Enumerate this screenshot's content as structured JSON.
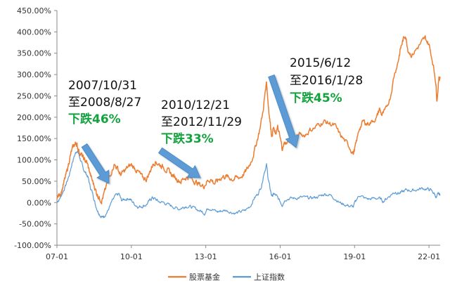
{
  "chart_data": {
    "type": "line",
    "title": "",
    "xlabel": "",
    "ylabel": "",
    "ylim": [
      -100,
      450
    ],
    "yticks": [
      "450.00%",
      "400.00%",
      "350.00%",
      "300.00%",
      "250.00%",
      "200.00%",
      "150.00%",
      "100.00%",
      "50.00%",
      "0.00%",
      "-50.00%",
      "-100.00%"
    ],
    "ytick_values": [
      450,
      400,
      350,
      300,
      250,
      200,
      150,
      100,
      50,
      0,
      -50,
      -100
    ],
    "xticks": [
      "07-01",
      "10-01",
      "13-01",
      "16-01",
      "19-01",
      "22-01"
    ],
    "xtick_values": [
      2007.0,
      2010.0,
      2013.0,
      2016.0,
      2019.0,
      2022.0
    ],
    "xlim": [
      2007.0,
      2022.45
    ],
    "grid": false,
    "legend_position": "bottom-center",
    "colors": {
      "fund": "#ed7d31",
      "index": "#5b9bd5",
      "arrow": "#5b9bd5",
      "green": "#12a33c"
    },
    "series": [
      {
        "name": "股票基金",
        "points": [
          [
            2007.0,
            12
          ],
          [
            2007.1,
            18
          ],
          [
            2007.2,
            30
          ],
          [
            2007.3,
            50
          ],
          [
            2007.4,
            72
          ],
          [
            2007.5,
            100
          ],
          [
            2007.6,
            122
          ],
          [
            2007.7,
            135
          ],
          [
            2007.78,
            140
          ],
          [
            2007.83,
            130
          ],
          [
            2007.9,
            120
          ],
          [
            2008.0,
            110
          ],
          [
            2008.1,
            100
          ],
          [
            2008.2,
            95
          ],
          [
            2008.3,
            75
          ],
          [
            2008.4,
            55
          ],
          [
            2008.5,
            40
          ],
          [
            2008.6,
            22
          ],
          [
            2008.7,
            12
          ],
          [
            2008.8,
            5
          ],
          [
            2008.9,
            20
          ],
          [
            2009.0,
            40
          ],
          [
            2009.15,
            65
          ],
          [
            2009.3,
            90
          ],
          [
            2009.45,
            80
          ],
          [
            2009.55,
            65
          ],
          [
            2009.7,
            72
          ],
          [
            2009.85,
            82
          ],
          [
            2010.0,
            88
          ],
          [
            2010.15,
            80
          ],
          [
            2010.3,
            70
          ],
          [
            2010.45,
            58
          ],
          [
            2010.6,
            55
          ],
          [
            2010.75,
            72
          ],
          [
            2010.85,
            88
          ],
          [
            2010.97,
            97
          ],
          [
            2011.1,
            90
          ],
          [
            2011.25,
            85
          ],
          [
            2011.4,
            78
          ],
          [
            2011.55,
            70
          ],
          [
            2011.7,
            62
          ],
          [
            2011.85,
            55
          ],
          [
            2012.0,
            50
          ],
          [
            2012.15,
            58
          ],
          [
            2012.3,
            60
          ],
          [
            2012.45,
            55
          ],
          [
            2012.6,
            48
          ],
          [
            2012.75,
            42
          ],
          [
            2012.91,
            38
          ],
          [
            2013.05,
            50
          ],
          [
            2013.2,
            55
          ],
          [
            2013.35,
            45
          ],
          [
            2013.5,
            52
          ],
          [
            2013.65,
            60
          ],
          [
            2013.8,
            62
          ],
          [
            2013.95,
            58
          ],
          [
            2014.1,
            55
          ],
          [
            2014.25,
            58
          ],
          [
            2014.4,
            60
          ],
          [
            2014.55,
            68
          ],
          [
            2014.7,
            80
          ],
          [
            2014.85,
            100
          ],
          [
            2015.0,
            130
          ],
          [
            2015.15,
            165
          ],
          [
            2015.3,
            210
          ],
          [
            2015.4,
            260
          ],
          [
            2015.45,
            285
          ],
          [
            2015.52,
            230
          ],
          [
            2015.6,
            185
          ],
          [
            2015.67,
            155
          ],
          [
            2015.72,
            175
          ],
          [
            2015.8,
            160
          ],
          [
            2015.9,
            175
          ],
          [
            2016.0,
            150
          ],
          [
            2016.08,
            128
          ],
          [
            2016.2,
            140
          ],
          [
            2016.4,
            145
          ],
          [
            2016.6,
            150
          ],
          [
            2016.8,
            160
          ],
          [
            2017.0,
            158
          ],
          [
            2017.2,
            170
          ],
          [
            2017.4,
            175
          ],
          [
            2017.6,
            185
          ],
          [
            2017.8,
            190
          ],
          [
            2018.0,
            185
          ],
          [
            2018.2,
            180
          ],
          [
            2018.4,
            160
          ],
          [
            2018.6,
            145
          ],
          [
            2018.8,
            130
          ],
          [
            2018.95,
            115
          ],
          [
            2019.05,
            135
          ],
          [
            2019.2,
            175
          ],
          [
            2019.35,
            190
          ],
          [
            2019.5,
            185
          ],
          [
            2019.7,
            190
          ],
          [
            2019.9,
            200
          ],
          [
            2020.0,
            220
          ],
          [
            2020.1,
            205
          ],
          [
            2020.25,
            215
          ],
          [
            2020.45,
            250
          ],
          [
            2020.6,
            300
          ],
          [
            2020.75,
            330
          ],
          [
            2020.85,
            360
          ],
          [
            2020.95,
            380
          ],
          [
            2021.05,
            393
          ],
          [
            2021.15,
            360
          ],
          [
            2021.3,
            345
          ],
          [
            2021.5,
            360
          ],
          [
            2021.7,
            375
          ],
          [
            2021.85,
            385
          ],
          [
            2022.0,
            370
          ],
          [
            2022.15,
            330
          ],
          [
            2022.27,
            285
          ],
          [
            2022.32,
            240
          ],
          [
            2022.4,
            290
          ],
          [
            2022.45,
            295
          ]
        ]
      },
      {
        "name": "上证指数",
        "points": [
          [
            2007.0,
            2
          ],
          [
            2007.1,
            8
          ],
          [
            2007.2,
            20
          ],
          [
            2007.35,
            40
          ],
          [
            2007.5,
            65
          ],
          [
            2007.62,
            95
          ],
          [
            2007.72,
            112
          ],
          [
            2007.8,
            122
          ],
          [
            2007.87,
            115
          ],
          [
            2007.95,
            100
          ],
          [
            2008.05,
            80
          ],
          [
            2008.15,
            70
          ],
          [
            2008.25,
            60
          ],
          [
            2008.35,
            35
          ],
          [
            2008.45,
            20
          ],
          [
            2008.55,
            -5
          ],
          [
            2008.65,
            -20
          ],
          [
            2008.75,
            -30
          ],
          [
            2008.83,
            -35
          ],
          [
            2008.92,
            -30
          ],
          [
            2009.05,
            -20
          ],
          [
            2009.2,
            0
          ],
          [
            2009.35,
            15
          ],
          [
            2009.5,
            20
          ],
          [
            2009.6,
            5
          ],
          [
            2009.75,
            8
          ],
          [
            2009.9,
            10
          ],
          [
            2010.0,
            5
          ],
          [
            2010.15,
            -5
          ],
          [
            2010.3,
            -10
          ],
          [
            2010.45,
            -8
          ],
          [
            2010.6,
            -5
          ],
          [
            2010.75,
            5
          ],
          [
            2010.85,
            12
          ],
          [
            2010.97,
            8
          ],
          [
            2011.1,
            2
          ],
          [
            2011.3,
            0
          ],
          [
            2011.5,
            -5
          ],
          [
            2011.7,
            -10
          ],
          [
            2011.9,
            -15
          ],
          [
            2012.05,
            -12
          ],
          [
            2012.2,
            -8
          ],
          [
            2012.4,
            -10
          ],
          [
            2012.6,
            -15
          ],
          [
            2012.8,
            -20
          ],
          [
            2012.95,
            -25
          ],
          [
            2013.1,
            -12
          ],
          [
            2013.25,
            -15
          ],
          [
            2013.45,
            -22
          ],
          [
            2013.6,
            -20
          ],
          [
            2013.8,
            -18
          ],
          [
            2014.0,
            -22
          ],
          [
            2014.2,
            -25
          ],
          [
            2014.4,
            -22
          ],
          [
            2014.6,
            -18
          ],
          [
            2014.8,
            -8
          ],
          [
            2014.95,
            10
          ],
          [
            2015.1,
            20
          ],
          [
            2015.25,
            40
          ],
          [
            2015.35,
            70
          ],
          [
            2015.45,
            88
          ],
          [
            2015.52,
            55
          ],
          [
            2015.6,
            30
          ],
          [
            2015.67,
            15
          ],
          [
            2015.75,
            20
          ],
          [
            2015.85,
            15
          ],
          [
            2016.0,
            2
          ],
          [
            2016.08,
            -5
          ],
          [
            2016.2,
            8
          ],
          [
            2016.4,
            10
          ],
          [
            2016.6,
            10
          ],
          [
            2016.8,
            12
          ],
          [
            2017.0,
            12
          ],
          [
            2017.2,
            10
          ],
          [
            2017.4,
            12
          ],
          [
            2017.6,
            15
          ],
          [
            2017.8,
            20
          ],
          [
            2018.0,
            18
          ],
          [
            2018.2,
            10
          ],
          [
            2018.4,
            0
          ],
          [
            2018.6,
            -5
          ],
          [
            2018.8,
            -8
          ],
          [
            2018.95,
            -10
          ],
          [
            2019.05,
            5
          ],
          [
            2019.2,
            18
          ],
          [
            2019.4,
            10
          ],
          [
            2019.6,
            8
          ],
          [
            2019.8,
            10
          ],
          [
            2020.0,
            10
          ],
          [
            2020.15,
            3
          ],
          [
            2020.3,
            10
          ],
          [
            2020.5,
            20
          ],
          [
            2020.65,
            25
          ],
          [
            2020.8,
            22
          ],
          [
            2020.95,
            25
          ],
          [
            2021.1,
            30
          ],
          [
            2021.3,
            28
          ],
          [
            2021.5,
            30
          ],
          [
            2021.7,
            33
          ],
          [
            2021.9,
            32
          ],
          [
            2022.05,
            30
          ],
          [
            2022.2,
            22
          ],
          [
            2022.3,
            12
          ],
          [
            2022.38,
            20
          ],
          [
            2022.45,
            18
          ]
        ]
      }
    ],
    "annotations": [
      {
        "line1": "2007/10/31",
        "line2": "至2008/8/27",
        "line3": "下跌46%"
      },
      {
        "line1": "2010/12/21",
        "line2": "至2012/11/29",
        "line3": "下跌33%"
      },
      {
        "line1": "2015/6/12",
        "line2": "至2016/1/28",
        "line3": "下跌45%"
      }
    ]
  }
}
